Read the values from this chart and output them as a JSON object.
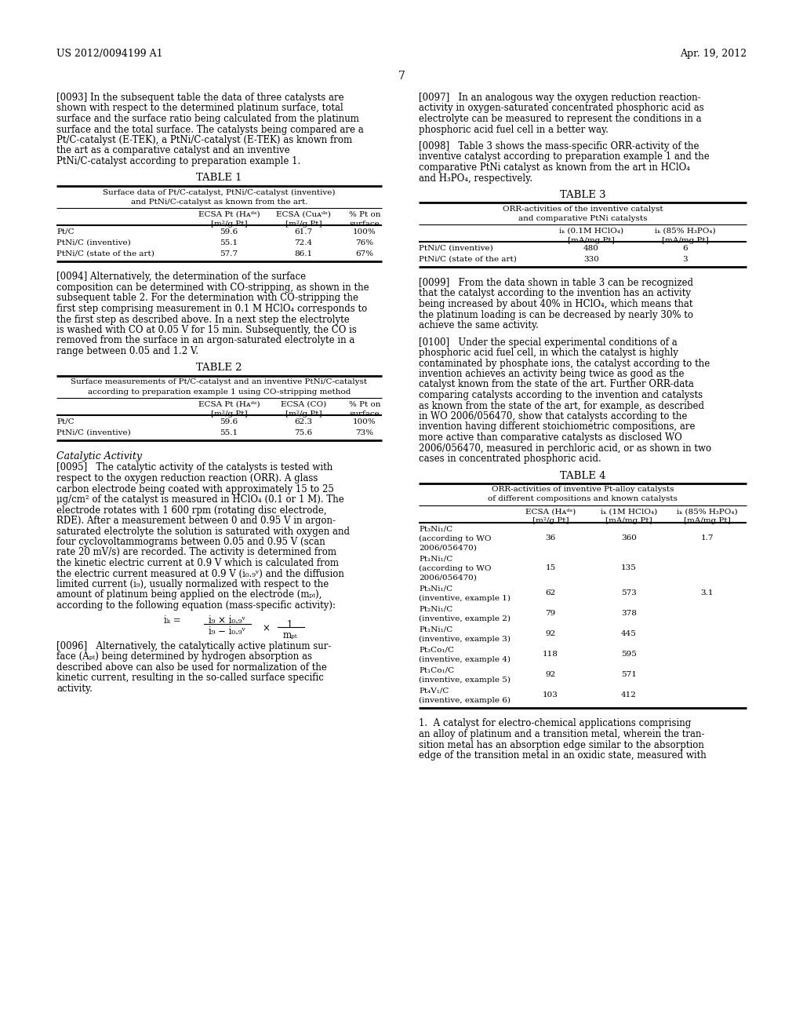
{
  "header_left": "US 2012/0094199 A1",
  "header_right": "Apr. 19, 2012",
  "page_number": "7",
  "background_color": "#ffffff",
  "para_0093": "[0093]   In the subsequent table the data of three catalysts are shown with respect to the determined platinum surface, total surface and the surface ratio being calculated from the platinum surface and the total surface. The catalysts being compared are a Pt/C-catalyst (E-TEK), a PtNi/C-catalyst (E-TEK) as known from the art as a comparative catalyst and an inventive PtNi/C-catalyst according to preparation example 1.",
  "table1_title": "TABLE 1",
  "table1_subtitle1": "Surface data of Pt/C-catalyst, PtNi/C-catalyst (inventive)",
  "table1_subtitle2": "and PtNi/C-catalyst as known from the art.",
  "table1_rows": [
    [
      "Pt/C",
      "59.6",
      "61.7",
      "100%"
    ],
    [
      "PtNi/C (inventive)",
      "55.1",
      "72.4",
      "76%"
    ],
    [
      "PtNi/C (state of the art)",
      "57.7",
      "86.1",
      "67%"
    ]
  ],
  "para_0094": "[0094]   Alternatively, the determination of the surface composition can be determined with CO-stripping, as shown in the subsequent table 2. For the determination with CO-stripping the first step comprising measurement in 0.1 M HClO₄ corresponds to the first step as described above. In a next step the electrolyte is washed with CO at 0.05 V for 15 min. Subsequently, the CO is removed from the surface in an argon-saturated electrolyte in a range between 0.05 and 1.2 V.",
  "table2_title": "TABLE 2",
  "table2_subtitle1": "Surface measurements of Pt/C-catalyst and an inventive PtNi/C-catalyst",
  "table2_subtitle2": "according to preparation example 1 using CO-stripping method",
  "table2_rows": [
    [
      "Pt/C",
      "59.6",
      "62.3",
      "100%"
    ],
    [
      "PtNi/C (inventive)",
      "55.1",
      "75.6",
      "73%"
    ]
  ],
  "catalytic_activity_title": "Catalytic Activity",
  "para_0095_lines": [
    "[0095]   The catalytic activity of the catalysts is tested with",
    "respect to the oxygen reduction reaction (ORR). A glass",
    "carbon electrode being coated with approximately 15 to 25",
    "μg/cm² of the catalyst is measured in HClO₄ (0.1 or 1 M). The",
    "electrode rotates with 1 600 rpm (rotating disc electrode,",
    "RDE). After a measurement between 0 and 0.95 V in argon-",
    "saturated electrolyte the solution is saturated with oxygen and",
    "four cyclovoltammograms between 0.05 and 0.95 V (scan",
    "rate 20 mV/s) are recorded. The activity is determined from",
    "the kinetic electric current at 0.9 V which is calculated from",
    "the electric current measured at 0.9 V (i₀.₉ᵛ) and the diffusion",
    "limited current (i₉), usually normalized with respect to the",
    "amount of platinum being applied on the electrode (mₚₜ),",
    "according to the following equation (mass-specific activity):"
  ],
  "equation_parts": [
    "iₖ =",
    "i₉ × i₀.₉ᵛ",
    "––––––––––",
    "i₉ − i₀.₉ᵛ",
    "×",
    "1",
    "––––",
    "mₚₜ"
  ],
  "para_0096_lines": [
    "[0096]   Alternatively, the catalytically active platinum sur-",
    "face (Aₚₜ) being determined by hydrogen absorption as",
    "described above can also be used for normalization of the",
    "kinetic current, resulting in the so-called surface specific",
    "activity."
  ],
  "para_0097_lines": [
    "[0097]   In an analogous way the oxygen reduction reaction-",
    "activity in oxygen-saturated concentrated phosphoric acid as",
    "electrolyte can be measured to represent the conditions in a",
    "phosphoric acid fuel cell in a better way."
  ],
  "para_0098_lines": [
    "[0098]   Table 3 shows the mass-specific ORR-activity of the",
    "inventive catalyst according to preparation example 1 and the",
    "comparative PtNi catalyst as known from the art in HClO₄",
    "and H₃PO₄, respectively."
  ],
  "table3_title": "TABLE 3",
  "table3_subtitle1": "ORR-activities of the inventive catalyst",
  "table3_subtitle2": "and comparative PtNi catalysts",
  "table3_rows": [
    [
      "PtNi/C (inventive)",
      "480",
      "6"
    ],
    [
      "PtNi/C (state of the art)",
      "330",
      "3"
    ]
  ],
  "para_0099_lines": [
    "[0099]   From the data shown in table 3 can be recognized",
    "that the catalyst according to the invention has an activity",
    "being increased by about 40% in HClO₄, which means that",
    "the platinum loading is can be decreased by nearly 30% to",
    "achieve the same activity."
  ],
  "para_0100_lines": [
    "[0100]   Under the special experimental conditions of a",
    "phosphoric acid fuel cell, in which the catalyst is highly",
    "contaminated by phosphate ions, the catalyst according to the",
    "invention achieves an activity being twice as good as the",
    "catalyst known from the state of the art. Further ORR-data",
    "comparing catalysts according to the invention and catalysts",
    "as known from the state of the art, for example, as described",
    "in WO 2006/056470, show that catalysts according to the",
    "invention having different stoichiometric compositions, are",
    "more active than comparative catalysts as disclosed WO",
    "2006/056470, measured in perchloric acid, or as shown in two",
    "cases in concentrated phosphoric acid."
  ],
  "table4_title": "TABLE 4",
  "table4_subtitle1": "ORR-activities of inventive Pt-alloy catalysts",
  "table4_subtitle2": "of different compositions and known catalysts",
  "table4_rows": [
    [
      "Pt₃Ni₁/C",
      "(according to WO",
      "2006/056470)",
      "36",
      "360",
      "1.7"
    ],
    [
      "Pt₁Ni₁/C",
      "(according to WO",
      "2006/056470)",
      "15",
      "135",
      ""
    ],
    [
      "Pt₃Ni₁/C",
      "(inventive, example 1)",
      "",
      "62",
      "573",
      "3.1"
    ],
    [
      "Pt₂Ni₁/C",
      "(inventive, example 2)",
      "",
      "79",
      "378",
      ""
    ],
    [
      "Pt₁Ni₁/C",
      "(inventive, example 3)",
      "",
      "92",
      "445",
      ""
    ],
    [
      "Pt₃Co₁/C",
      "(inventive, example 4)",
      "",
      "118",
      "595",
      ""
    ],
    [
      "Pt₁Co₁/C",
      "(inventive, example 5)",
      "",
      "92",
      "571",
      ""
    ],
    [
      "Pt₄V₁/C",
      "(inventive, example 6)",
      "",
      "103",
      "412",
      ""
    ]
  ],
  "claims_lines": [
    "1.  A catalyst for electro-chemical applications comprising",
    "an alloy of platinum and a transition metal, wherein the tran-",
    "sition metal has an absorption edge similar to the absorption",
    "edge of the transition metal in an oxidic state, measured with"
  ]
}
